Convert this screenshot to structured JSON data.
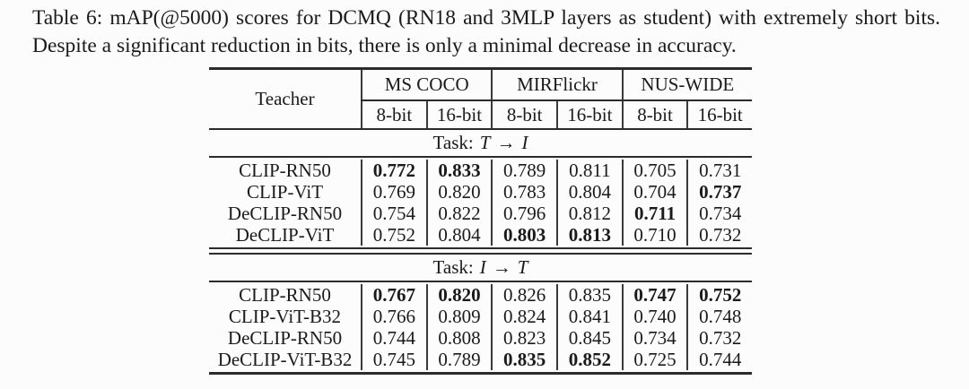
{
  "page": {
    "background_color": "#fcfcfc",
    "text_color": "#1a1a1a",
    "rule_color": "#2b2b2b"
  },
  "caption": "Table 6: mAP(@5000) scores for DCMQ (RN18 and 3MLP layers as student) with extremely short bits. Despite a significant reduction in bits, there is only a minimal decrease in accuracy.",
  "table": {
    "teacher_header": "Teacher",
    "dataset_headers": [
      "MS COCO",
      "MIRFlickr",
      "NUS-WIDE"
    ],
    "bit_headers": [
      "8-bit",
      "16-bit",
      "8-bit",
      "16-bit",
      "8-bit",
      "16-bit"
    ],
    "sections": [
      {
        "task": {
          "prefix": "Task:",
          "from": "T",
          "arrow": "→",
          "to": "I"
        },
        "rows": [
          {
            "teacher": "CLIP-RN50",
            "values": [
              "0.772",
              "0.833",
              "0.789",
              "0.811",
              "0.705",
              "0.731"
            ],
            "bold": [
              true,
              true,
              false,
              false,
              false,
              false
            ]
          },
          {
            "teacher": "CLIP-ViT",
            "values": [
              "0.769",
              "0.820",
              "0.783",
              "0.804",
              "0.704",
              "0.737"
            ],
            "bold": [
              false,
              false,
              false,
              false,
              false,
              true
            ]
          },
          {
            "teacher": "DeCLIP-RN50",
            "values": [
              "0.754",
              "0.822",
              "0.796",
              "0.812",
              "0.711",
              "0.734"
            ],
            "bold": [
              false,
              false,
              false,
              false,
              true,
              false
            ]
          },
          {
            "teacher": "DeCLIP-ViT",
            "values": [
              "0.752",
              "0.804",
              "0.803",
              "0.813",
              "0.710",
              "0.732"
            ],
            "bold": [
              false,
              false,
              true,
              true,
              false,
              false
            ]
          }
        ]
      },
      {
        "task": {
          "prefix": "Task:",
          "from": "I",
          "arrow": "→",
          "to": "T"
        },
        "rows": [
          {
            "teacher": "CLIP-RN50",
            "values": [
              "0.767",
              "0.820",
              "0.826",
              "0.835",
              "0.747",
              "0.752"
            ],
            "bold": [
              true,
              true,
              false,
              false,
              true,
              true
            ]
          },
          {
            "teacher": "CLIP-ViT-B32",
            "values": [
              "0.766",
              "0.809",
              "0.824",
              "0.841",
              "0.740",
              "0.748"
            ],
            "bold": [
              false,
              false,
              false,
              false,
              false,
              false
            ]
          },
          {
            "teacher": "DeCLIP-RN50",
            "values": [
              "0.744",
              "0.808",
              "0.823",
              "0.845",
              "0.734",
              "0.732"
            ],
            "bold": [
              false,
              false,
              false,
              false,
              false,
              false
            ]
          },
          {
            "teacher": "DeCLIP-ViT-B32",
            "values": [
              "0.745",
              "0.789",
              "0.835",
              "0.852",
              "0.725",
              "0.744"
            ],
            "bold": [
              false,
              false,
              true,
              true,
              false,
              false
            ]
          }
        ]
      }
    ]
  }
}
